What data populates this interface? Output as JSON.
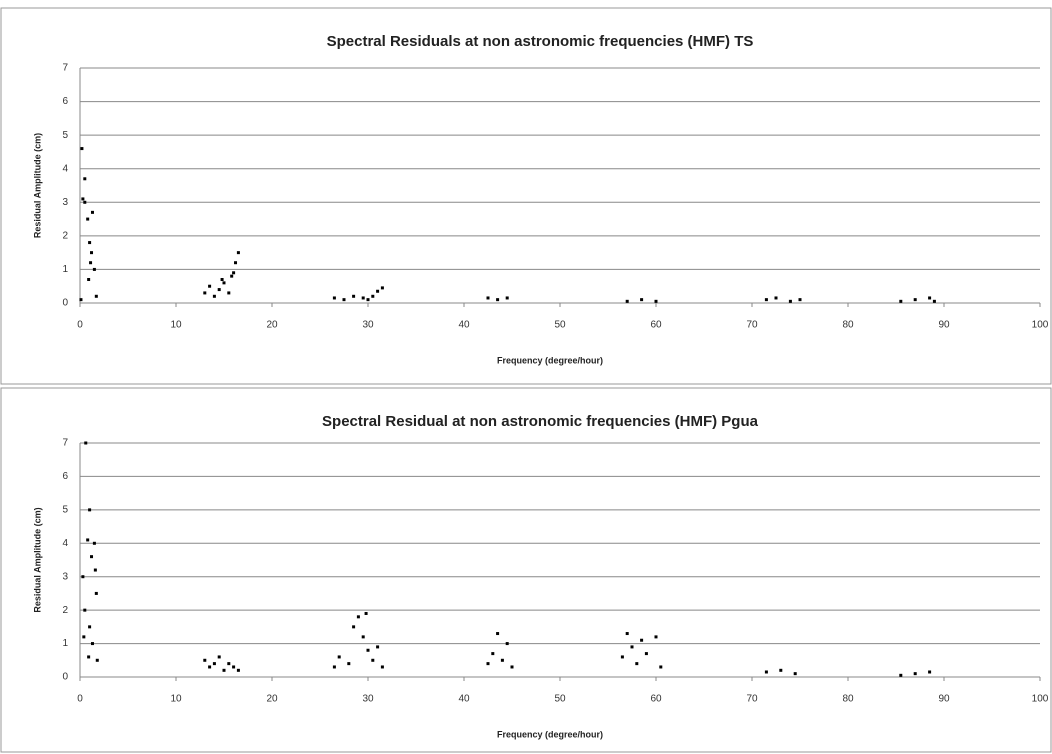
{
  "chart_data": [
    {
      "type": "scatter",
      "title": "Spectral Residuals at non astronomic frequencies (HMF) TS",
      "x_label": "Frequency (degree/hour)",
      "y_label": "Residual Amplitude (cm)",
      "x": [
        0.2,
        0.3,
        0.5,
        0.5,
        0.8,
        1.0,
        1.2,
        1.5,
        0.9,
        1.3,
        1.7,
        0.1,
        1.1,
        13,
        13.5,
        14,
        14.5,
        15,
        15.5,
        16,
        16.5,
        16.2,
        14.8,
        15.8,
        26.5,
        27.5,
        28.5,
        29.5,
        30.5,
        31,
        31.5,
        30,
        42.5,
        43.5,
        44.5,
        57,
        58.5,
        60,
        71.5,
        72.5,
        74,
        75,
        85.5,
        87,
        88.5,
        89
      ],
      "values": [
        4.6,
        3.1,
        3.0,
        3.7,
        2.5,
        1.8,
        1.5,
        1.0,
        0.7,
        2.7,
        0.2,
        0.1,
        1.2,
        0.3,
        0.5,
        0.2,
        0.4,
        0.6,
        0.3,
        0.9,
        1.5,
        1.2,
        0.7,
        0.8,
        0.15,
        0.1,
        0.2,
        0.15,
        0.2,
        0.35,
        0.45,
        0.1,
        0.15,
        0.1,
        0.15,
        0.05,
        0.1,
        0.05,
        0.1,
        0.15,
        0.05,
        0.1,
        0.05,
        0.1,
        0.15,
        0.05
      ],
      "color": "#000000",
      "xlim": [
        0,
        100
      ],
      "xticks": [
        0,
        10,
        20,
        30,
        40,
        50,
        60,
        70,
        80,
        90,
        100
      ],
      "ylim": [
        0,
        7
      ],
      "yticks": [
        0,
        1,
        2,
        3,
        4,
        5,
        6,
        7
      ],
      "grid": true
    },
    {
      "type": "scatter",
      "title": "Spectral Residual at non astronomic frequencies (HMF) Pgua",
      "x_label": "Frequency (degree/hour)",
      "y_label": "Residual Amplitude (cm)",
      "x": [
        0.3,
        0.6,
        0.8,
        1.0,
        1.2,
        1.5,
        0.5,
        1.0,
        1.3,
        1.7,
        0.9,
        1.8,
        0.4,
        1.6,
        13,
        13.5,
        14,
        15,
        15.5,
        16,
        16.5,
        14.5,
        26.5,
        27,
        28,
        28.5,
        29,
        29.5,
        30,
        30.5,
        31,
        31.5,
        29.8,
        42.5,
        43,
        43.5,
        44,
        44.5,
        45,
        56.5,
        57,
        58,
        58.5,
        59,
        60,
        60.5,
        57.5,
        71.5,
        73,
        74.5,
        85.5,
        87,
        88.5
      ],
      "values": [
        3.0,
        7.0,
        4.1,
        5.0,
        3.6,
        4.0,
        2.0,
        1.5,
        1.0,
        2.5,
        0.6,
        0.5,
        1.2,
        3.2,
        0.5,
        0.3,
        0.4,
        0.2,
        0.4,
        0.3,
        0.2,
        0.6,
        0.3,
        0.6,
        0.4,
        1.5,
        1.8,
        1.2,
        0.8,
        0.5,
        0.9,
        0.3,
        1.9,
        0.4,
        0.7,
        1.3,
        0.5,
        1.0,
        0.3,
        0.6,
        1.3,
        0.4,
        1.1,
        0.7,
        1.2,
        0.3,
        0.9,
        0.15,
        0.2,
        0.1,
        0.05,
        0.1,
        0.15
      ],
      "color": "#000000",
      "xlim": [
        0,
        100
      ],
      "xticks": [
        0,
        10,
        20,
        30,
        40,
        50,
        60,
        70,
        80,
        90,
        100
      ],
      "ylim": [
        0,
        7
      ],
      "yticks": [
        0,
        1,
        2,
        3,
        4,
        5,
        6,
        7
      ],
      "grid": true
    }
  ]
}
